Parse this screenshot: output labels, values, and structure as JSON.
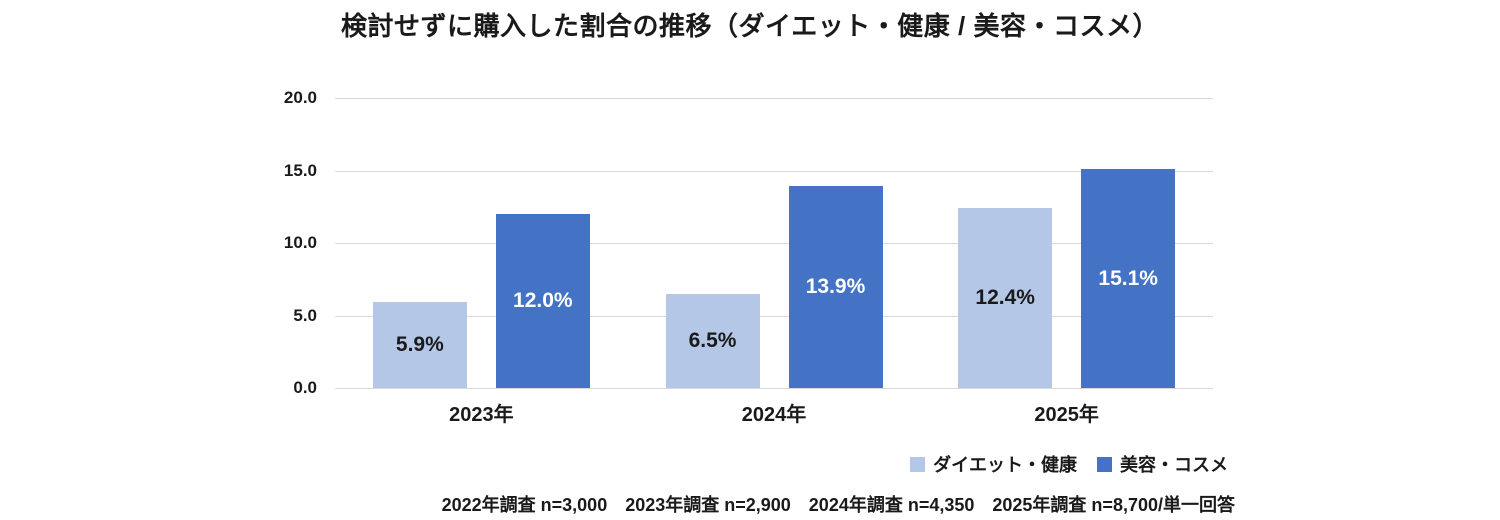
{
  "title": "検討せずに購入した割合の推移（ダイエット・健康 / 美容・コスメ）",
  "chart_data": {
    "type": "bar",
    "categories": [
      "2023年",
      "2024年",
      "2025年"
    ],
    "series": [
      {
        "name": "ダイエット・健康",
        "color": "#b4c7e7",
        "label_color": "#1a1a1a",
        "values": [
          5.9,
          6.5,
          12.4
        ],
        "labels": [
          "5.9%",
          "6.5%",
          "12.4%"
        ]
      },
      {
        "name": "美容・コスメ",
        "color": "#4472c4",
        "label_color": "#ffffff",
        "values": [
          12.0,
          13.9,
          15.1
        ],
        "labels": [
          "12.0%",
          "13.9%",
          "15.1%"
        ]
      }
    ],
    "ylim": [
      0,
      20
    ],
    "yticks": [
      20.0,
      15.0,
      10.0,
      5.0,
      0.0
    ],
    "ytick_labels": [
      "20.0",
      "15.0",
      "10.0",
      "5.0",
      "0.0"
    ],
    "grid": true,
    "gridline_color": "#d9d9d9",
    "legend_position": "bottom-right"
  },
  "footer": {
    "note": "2022年調査 n=3,000　2023年調査 n=2,900　2024年調査 n=4,350　2025年調査 n=8,700/単一回答"
  }
}
